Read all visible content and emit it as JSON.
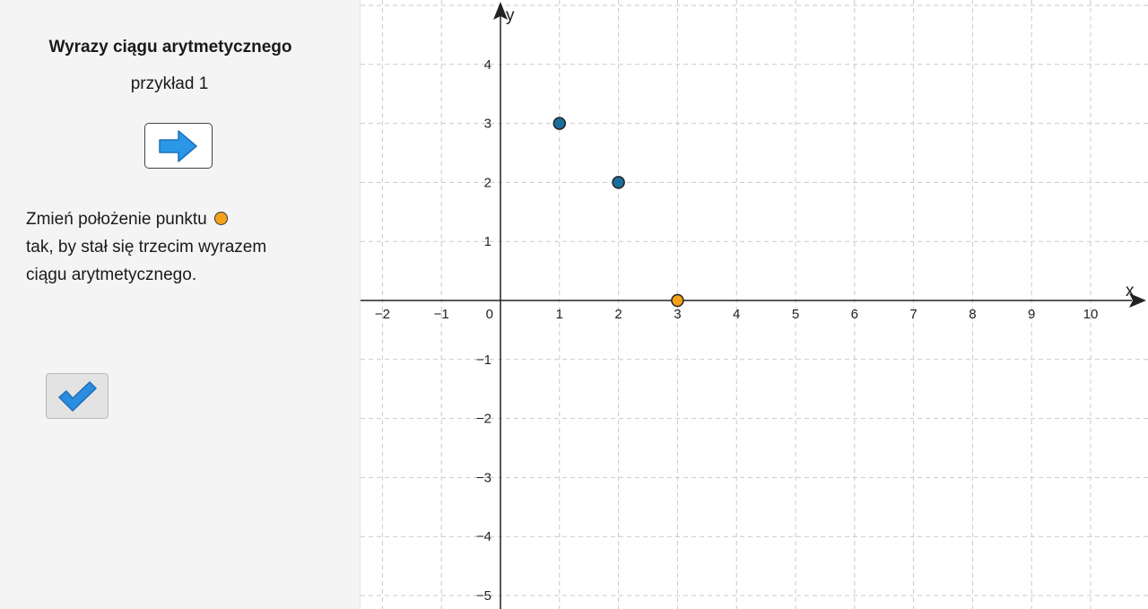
{
  "sidebar": {
    "title": "Wyrazy ciągu arytmetycznego",
    "subtitle": "przykład 1",
    "instruction_line1": "Zmień położenie punktu",
    "instruction_line2": "tak, by stał się trzecim wyrazem",
    "instruction_line3": "ciągu arytmetycznego.",
    "next_icon": "right-arrow-icon",
    "check_icon": "checkmark-icon"
  },
  "graph": {
    "x_axis_label": "x",
    "y_axis_label": "y",
    "x_range": [
      -2,
      10
    ],
    "y_range": [
      -5,
      4
    ],
    "grid": true,
    "grid_style": "dashed",
    "x_ticks": [
      "−2",
      "−1",
      "0",
      "1",
      "2",
      "3",
      "4",
      "5",
      "6",
      "7",
      "8",
      "9",
      "10"
    ],
    "y_ticks": [
      "4",
      "3",
      "2",
      "1",
      "−1",
      "−2",
      "−3",
      "−4",
      "−5"
    ],
    "points": [
      {
        "x": 1,
        "y": 3,
        "color": "#1b6e9c",
        "draggable": false
      },
      {
        "x": 2,
        "y": 2,
        "color": "#1b6e9c",
        "draggable": false
      },
      {
        "x": 3,
        "y": 0,
        "color": "#f5a21b",
        "draggable": true
      }
    ]
  },
  "colors": {
    "sequence_point": "#1b6e9c",
    "movable_point": "#f5a21b",
    "arrow_button": "#2b97e8",
    "check_mark": "#2a8de0"
  }
}
